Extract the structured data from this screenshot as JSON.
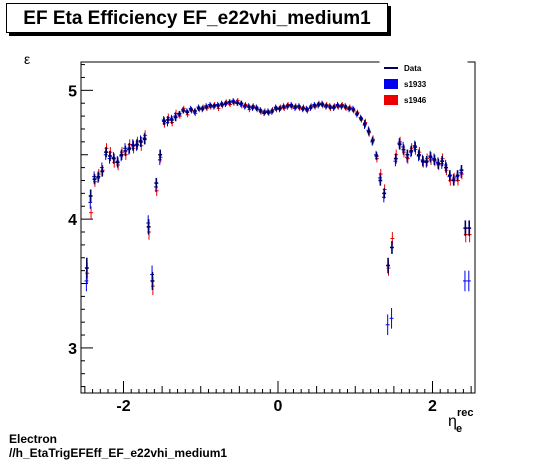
{
  "title": "EF Eta Efficiency EF_e22vhi_medium1",
  "footer": {
    "line1": "Electron",
    "line2": "//h_EtaTrigEFEff_EF_e22vhi_medium1"
  },
  "colors": {
    "data": "#000066",
    "s1933": "#0000ee",
    "s1946": "#ee0000"
  },
  "chart_data": {
    "type": "scatter",
    "title": "EF Eta Efficiency EF_e22vhi_medium1",
    "xlabel": "η",
    "xlabel_sub": "e",
    "xlabel_sup": "rec",
    "ylabel": "ε",
    "xlim": [
      -2.55,
      2.55
    ],
    "ylim": [
      2.65,
      5.22
    ],
    "xticks": [
      -2,
      0,
      2
    ],
    "xtick_labels": [
      "-2",
      "0",
      "2"
    ],
    "yticks": [
      3,
      4,
      5
    ],
    "ytick_labels": [
      "3",
      "4",
      "5"
    ],
    "legend_position": "top-right",
    "legend": [
      "Data",
      "s1933",
      "s1946"
    ],
    "x": [
      -2.475,
      -2.425,
      -2.375,
      -2.325,
      -2.275,
      -2.225,
      -2.175,
      -2.125,
      -2.075,
      -2.025,
      -1.975,
      -1.925,
      -1.875,
      -1.825,
      -1.775,
      -1.725,
      -1.675,
      -1.625,
      -1.575,
      -1.525,
      -1.475,
      -1.425,
      -1.375,
      -1.325,
      -1.275,
      -1.225,
      -1.175,
      -1.125,
      -1.075,
      -1.025,
      -0.975,
      -0.925,
      -0.875,
      -0.825,
      -0.775,
      -0.725,
      -0.675,
      -0.625,
      -0.575,
      -0.525,
      -0.475,
      -0.425,
      -0.375,
      -0.325,
      -0.275,
      -0.225,
      -0.175,
      -0.125,
      -0.075,
      -0.025,
      0.025,
      0.075,
      0.125,
      0.175,
      0.225,
      0.275,
      0.325,
      0.375,
      0.425,
      0.475,
      0.525,
      0.575,
      0.625,
      0.675,
      0.725,
      0.775,
      0.825,
      0.875,
      0.925,
      0.975,
      1.025,
      1.075,
      1.125,
      1.175,
      1.225,
      1.275,
      1.325,
      1.375,
      1.425,
      1.475,
      1.525,
      1.575,
      1.625,
      1.675,
      1.725,
      1.775,
      1.825,
      1.875,
      1.925,
      1.975,
      2.025,
      2.075,
      2.125,
      2.175,
      2.225,
      2.275,
      2.325,
      2.375,
      2.425,
      2.475
    ],
    "series": [
      {
        "name": "Data",
        "values": [
          3.62,
          4.18,
          4.31,
          4.33,
          4.37,
          4.52,
          4.49,
          4.47,
          4.44,
          4.5,
          4.53,
          4.55,
          4.57,
          4.58,
          4.6,
          4.62,
          3.94,
          3.52,
          4.28,
          4.5,
          4.76,
          4.77,
          4.77,
          4.79,
          4.82,
          4.84,
          4.83,
          4.85,
          4.84,
          4.86,
          4.86,
          4.87,
          4.88,
          4.88,
          4.88,
          4.89,
          4.9,
          4.91,
          4.91,
          4.9,
          4.9,
          4.88,
          4.87,
          4.87,
          4.86,
          4.84,
          4.83,
          4.83,
          4.84,
          4.86,
          4.86,
          4.87,
          4.88,
          4.88,
          4.87,
          4.87,
          4.86,
          4.85,
          4.87,
          4.88,
          4.89,
          4.89,
          4.88,
          4.87,
          4.87,
          4.88,
          4.88,
          4.87,
          4.86,
          4.85,
          4.82,
          4.78,
          4.74,
          4.68,
          4.61,
          4.49,
          4.3,
          4.2,
          3.64,
          3.78,
          4.47,
          4.58,
          4.54,
          4.5,
          4.53,
          4.56,
          4.5,
          4.45,
          4.45,
          4.48,
          4.46,
          4.43,
          4.45,
          4.4,
          4.34,
          4.3,
          4.34,
          4.38,
          3.93,
          3.93
        ],
        "err": [
          0.08,
          0.05,
          0.04,
          0.04,
          0.04,
          0.04,
          0.04,
          0.04,
          0.04,
          0.04,
          0.04,
          0.04,
          0.04,
          0.04,
          0.04,
          0.04,
          0.06,
          0.07,
          0.04,
          0.04,
          0.03,
          0.03,
          0.03,
          0.03,
          0.02,
          0.02,
          0.02,
          0.02,
          0.02,
          0.02,
          0.02,
          0.02,
          0.02,
          0.02,
          0.02,
          0.02,
          0.02,
          0.02,
          0.02,
          0.02,
          0.02,
          0.02,
          0.02,
          0.02,
          0.02,
          0.02,
          0.02,
          0.02,
          0.02,
          0.02,
          0.02,
          0.02,
          0.02,
          0.02,
          0.02,
          0.02,
          0.02,
          0.02,
          0.02,
          0.02,
          0.02,
          0.02,
          0.02,
          0.02,
          0.02,
          0.02,
          0.02,
          0.02,
          0.02,
          0.02,
          0.02,
          0.02,
          0.03,
          0.03,
          0.03,
          0.03,
          0.04,
          0.04,
          0.06,
          0.05,
          0.04,
          0.04,
          0.04,
          0.04,
          0.04,
          0.04,
          0.04,
          0.04,
          0.04,
          0.04,
          0.04,
          0.04,
          0.04,
          0.04,
          0.04,
          0.04,
          0.04,
          0.04,
          0.06,
          0.06
        ]
      },
      {
        "name": "s1933",
        "values": [
          3.52,
          4.13,
          4.33,
          4.32,
          4.4,
          4.5,
          4.47,
          4.48,
          4.45,
          4.49,
          4.55,
          4.54,
          4.58,
          4.57,
          4.61,
          4.63,
          3.97,
          3.57,
          4.25,
          4.46,
          4.77,
          4.75,
          4.78,
          4.8,
          4.81,
          4.85,
          4.84,
          4.86,
          4.83,
          4.87,
          4.85,
          4.88,
          4.89,
          4.87,
          4.89,
          4.9,
          4.89,
          4.9,
          4.92,
          4.91,
          4.89,
          4.87,
          4.88,
          4.86,
          4.87,
          4.85,
          4.82,
          4.84,
          4.83,
          4.87,
          4.85,
          4.88,
          4.87,
          4.89,
          4.86,
          4.88,
          4.85,
          4.86,
          4.86,
          4.89,
          4.88,
          4.9,
          4.87,
          4.88,
          4.86,
          4.89,
          4.87,
          4.88,
          4.85,
          4.86,
          4.81,
          4.79,
          4.73,
          4.69,
          4.6,
          4.5,
          4.32,
          4.17,
          3.18,
          3.23,
          4.45,
          4.59,
          4.56,
          4.48,
          4.52,
          4.57,
          4.49,
          4.46,
          4.44,
          4.49,
          4.47,
          4.44,
          4.43,
          4.42,
          4.33,
          4.31,
          4.33,
          4.36,
          3.52,
          3.52
        ],
        "err": [
          0.08,
          0.05,
          0.04,
          0.04,
          0.04,
          0.04,
          0.04,
          0.04,
          0.04,
          0.04,
          0.04,
          0.04,
          0.04,
          0.04,
          0.04,
          0.04,
          0.06,
          0.07,
          0.04,
          0.04,
          0.03,
          0.03,
          0.03,
          0.03,
          0.02,
          0.02,
          0.02,
          0.02,
          0.02,
          0.02,
          0.02,
          0.02,
          0.02,
          0.02,
          0.02,
          0.02,
          0.02,
          0.02,
          0.02,
          0.02,
          0.02,
          0.02,
          0.02,
          0.02,
          0.02,
          0.02,
          0.02,
          0.02,
          0.02,
          0.02,
          0.02,
          0.02,
          0.02,
          0.02,
          0.02,
          0.02,
          0.02,
          0.02,
          0.02,
          0.02,
          0.02,
          0.02,
          0.02,
          0.02,
          0.02,
          0.02,
          0.02,
          0.02,
          0.02,
          0.02,
          0.02,
          0.02,
          0.03,
          0.03,
          0.03,
          0.03,
          0.04,
          0.04,
          0.08,
          0.08,
          0.04,
          0.04,
          0.04,
          0.04,
          0.04,
          0.04,
          0.04,
          0.04,
          0.04,
          0.04,
          0.04,
          0.04,
          0.04,
          0.04,
          0.04,
          0.04,
          0.04,
          0.04,
          0.08,
          0.08
        ]
      },
      {
        "name": "s1946",
        "values": [
          3.58,
          4.05,
          4.29,
          4.35,
          4.38,
          4.55,
          4.52,
          4.44,
          4.42,
          4.52,
          4.5,
          4.58,
          4.55,
          4.6,
          4.57,
          4.65,
          3.9,
          3.48,
          4.22,
          4.48,
          4.74,
          4.79,
          4.75,
          4.82,
          4.8,
          4.86,
          4.81,
          4.84,
          4.82,
          4.85,
          4.87,
          4.86,
          4.87,
          4.89,
          4.86,
          4.88,
          4.91,
          4.89,
          4.9,
          4.92,
          4.88,
          4.89,
          4.85,
          4.88,
          4.85,
          4.83,
          4.84,
          4.82,
          4.85,
          4.85,
          4.87,
          4.86,
          4.89,
          4.87,
          4.88,
          4.86,
          4.87,
          4.84,
          4.88,
          4.87,
          4.9,
          4.88,
          4.89,
          4.86,
          4.88,
          4.87,
          4.89,
          4.86,
          4.87,
          4.84,
          4.83,
          4.77,
          4.75,
          4.67,
          4.62,
          4.47,
          4.35,
          4.23,
          3.62,
          3.85,
          4.5,
          4.6,
          4.52,
          4.47,
          4.55,
          4.54,
          4.52,
          4.44,
          4.47,
          4.46,
          4.45,
          4.42,
          4.47,
          4.38,
          4.3,
          4.32,
          4.3,
          4.35,
          3.88,
          3.88
        ],
        "err": [
          0.08,
          0.05,
          0.04,
          0.04,
          0.04,
          0.04,
          0.04,
          0.04,
          0.04,
          0.04,
          0.04,
          0.04,
          0.04,
          0.04,
          0.04,
          0.04,
          0.06,
          0.07,
          0.04,
          0.04,
          0.03,
          0.03,
          0.03,
          0.03,
          0.02,
          0.02,
          0.02,
          0.02,
          0.02,
          0.02,
          0.02,
          0.02,
          0.02,
          0.02,
          0.02,
          0.02,
          0.02,
          0.02,
          0.02,
          0.02,
          0.02,
          0.02,
          0.02,
          0.02,
          0.02,
          0.02,
          0.02,
          0.02,
          0.02,
          0.02,
          0.02,
          0.02,
          0.02,
          0.02,
          0.02,
          0.02,
          0.02,
          0.02,
          0.02,
          0.02,
          0.02,
          0.02,
          0.02,
          0.02,
          0.02,
          0.02,
          0.02,
          0.02,
          0.02,
          0.02,
          0.02,
          0.02,
          0.03,
          0.03,
          0.03,
          0.03,
          0.04,
          0.04,
          0.06,
          0.05,
          0.04,
          0.04,
          0.04,
          0.04,
          0.04,
          0.04,
          0.04,
          0.04,
          0.04,
          0.04,
          0.04,
          0.04,
          0.04,
          0.04,
          0.04,
          0.04,
          0.04,
          0.04,
          0.06,
          0.06
        ]
      }
    ]
  }
}
